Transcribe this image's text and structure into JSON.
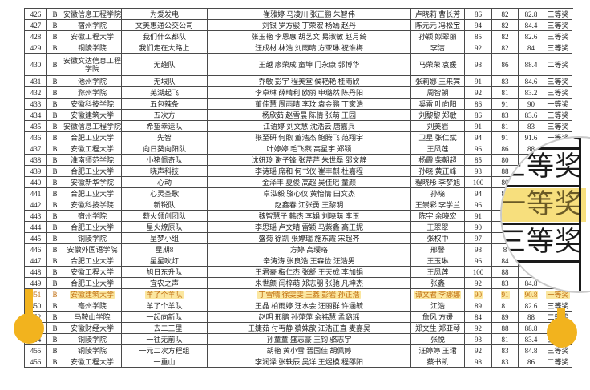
{
  "table": {
    "col_keys": [
      "no",
      "group",
      "school",
      "team",
      "members",
      "advisors",
      "score1",
      "score2",
      "avg",
      "award"
    ],
    "rows": [
      {
        "no": "426",
        "group": "B",
        "school": "安徽信息工程学院",
        "team": "为爱发电",
        "members": "崔雅婷 马凌川 张正鹏 朱智伟",
        "advisors": "卢晓莉 曹长芳",
        "score1": "86",
        "score2": "82",
        "avg": "82.8",
        "award": "三等奖"
      },
      {
        "no": "427",
        "group": "B",
        "school": "宿州学院",
        "team": "文美惠通公交公司",
        "members": "刘银 罗方骏 丁荣宏 杨嫣 赵丹",
        "advisors": "陈元元 冯松宝",
        "score1": "94",
        "score2": "82",
        "avg": "84.4",
        "award": "三等奖"
      },
      {
        "no": "428",
        "group": "B",
        "school": "安徽工程大学",
        "team": "我们什么都队",
        "members": "张玉艳 李恩惠 胡艺文 易淑敏 赵月绮",
        "advisors": "孙颖 姒翠丽",
        "score1": "85",
        "score2": "82",
        "avg": "82.6",
        "award": "三等奖"
      },
      {
        "no": "429",
        "group": "B",
        "school": "铜陵学院",
        "team": "我们走在大路上",
        "members": "汪成材 林浩 刘雨晴 方亚琳 祝淮梅",
        "advisors": "李洁",
        "score1": "92",
        "score2": "82",
        "avg": "84",
        "award": "三等奖"
      },
      {
        "no": "430",
        "group": "B",
        "school": "安徽文达信息工程学院",
        "team": "无趣队",
        "members": "王越 廖荣成 童坤 门永康 郭博华",
        "advisors": "马荣荣 袁媛",
        "score1": "98",
        "score2": "86",
        "avg": "88.4",
        "award": "二等奖",
        "tall": true
      },
      {
        "no": "431",
        "group": "B",
        "school": "池州学院",
        "team": "无垠队",
        "members": "乔敏 彭宇 程美堂 侯艳艳 桂雨欣",
        "advisors": "张莉娜 王来宾",
        "score1": "91",
        "score2": "83",
        "avg": "84.6",
        "award": "三等奖"
      },
      {
        "no": "432",
        "group": "B",
        "school": "滁州学院",
        "team": "芜湖起飞",
        "members": "李卓琳 薛晴利 欧丽 申璐然 陈丹阳",
        "advisors": "周智朝",
        "score1": "92",
        "score2": "81",
        "avg": "83.2",
        "award": "三等奖"
      },
      {
        "no": "433",
        "group": "B",
        "school": "安徽科技学院",
        "team": "五包辣条",
        "members": "董佳慧 周雨晴 李玟 袁金鹏 丁家浩",
        "advisors": "奚雷 叶向阳",
        "score1": "86",
        "score2": "91",
        "avg": "90",
        "award": "一等奖"
      },
      {
        "no": "434",
        "group": "B",
        "school": "安徽建筑大学",
        "team": "五次方",
        "members": "杨欣茹 赵雪晨 陈倩 张萌 王园",
        "advisors": "刘黎黎 郑敏",
        "score1": "86",
        "score2": "83",
        "avg": "83.6",
        "award": "三等奖"
      },
      {
        "no": "435",
        "group": "B",
        "school": "安徽信息工程学院",
        "team": "希望幸运队",
        "members": "江语婷 刘文慧 沈浩云 唐嘉兵",
        "advisors": "刘美岩",
        "score1": "91",
        "score2": "81",
        "avg": "83",
        "award": "三等奖"
      },
      {
        "no": "436",
        "group": "B",
        "school": "合肥工业大学",
        "team": "先智",
        "members": "张至研 何煦 董浩杰 鲍腾飞 范翔宇",
        "advisors": "卫星 张仁斌",
        "score1": "94",
        "score2": "91",
        "avg": "91.6",
        "award": "一等奖"
      },
      {
        "no": "437",
        "group": "B",
        "school": "安徽工程大学",
        "team": "向日葵向阳队",
        "members": "叶婷婷 毛飞燕 高星宇 郑颖",
        "advisors": "王凤莲",
        "score1": "96",
        "score2": "86",
        "avg": "88",
        "award": "二等奖"
      },
      {
        "no": "438",
        "group": "B",
        "school": "淮南师范学院",
        "team": "小猪佩奇队",
        "members": "沈妍玲 谢子锋 张芹芹 朱世磊 邵文静",
        "advisors": "杨霞 柴朝超",
        "score1": "85",
        "score2": "80",
        "avg": "81",
        "award": ""
      },
      {
        "no": "439",
        "group": "B",
        "school": "合肥工业大学",
        "team": "晓声科技",
        "members": "李诗瑶 席和 何书仪 崔丰麒 杜嘉程",
        "advisors": "孙晓 黄正峰",
        "score1": "93",
        "score2": "88",
        "avg": "",
        "award": ""
      },
      {
        "no": "440",
        "group": "B",
        "school": "安徽新华学院",
        "team": "心动",
        "members": "金泽丰 夏俊 高超 吴佳瑶 童颜",
        "advisors": "程晓彤 李梦旭",
        "score1": "100",
        "score2": "80",
        "avg": "",
        "award": ""
      },
      {
        "no": "441",
        "group": "B",
        "school": "合肥工业大学",
        "team": "心灵圣歌",
        "members": "卓泓毅 骆心仪 黄怡情 田文杰",
        "advisors": "孙晓",
        "score1": "94",
        "score2": "83",
        "avg": "",
        "award": ""
      },
      {
        "no": "442",
        "group": "B",
        "school": "安徽科技学院",
        "team": "新锐队",
        "members": "赵鑫春 江张勇 王黎明",
        "advisors": "王崇彩 李学兰",
        "score1": "96",
        "score2": "",
        "avg": "",
        "award": ""
      },
      {
        "no": "443",
        "group": "B",
        "school": "宿州学院",
        "team": "薪火领创团队",
        "members": "魏智慧子 韩杰 李娟 刘晓萌 李玉",
        "advisors": "陈宇 余晓宏",
        "score1": "91",
        "score2": "",
        "avg": "",
        "award": ""
      },
      {
        "no": "444",
        "group": "B",
        "school": "合肥工业大学",
        "team": "星火燎原队",
        "members": "李思瑶 卢文晴 雷颖 马紫鑫 高王妮",
        "advisors": "王翠翠",
        "score1": "90",
        "score2": "",
        "avg": "",
        "award": ""
      },
      {
        "no": "445",
        "group": "B",
        "school": "铜陵学院",
        "team": "星梦小组",
        "members": "盛菊 徐凯 张婷瑞 施东霞 宋超齐",
        "advisors": "张权中",
        "score1": "97",
        "score2": "",
        "avg": "",
        "award": ""
      },
      {
        "no": "446",
        "group": "B",
        "school": "安徽外国语学院",
        "team": "星期8",
        "members": "方婷 高璎珞",
        "advisors": "邢謦",
        "score1": "98",
        "score2": "8",
        "avg": "",
        "award": ""
      },
      {
        "no": "447",
        "group": "B",
        "school": "合肥工业大学",
        "team": "星星吹灯",
        "members": "辛涛涛 张良浩 王森俭 汪浩男",
        "advisors": "王玉琳",
        "score1": "96",
        "score2": "84",
        "avg": "",
        "award": ""
      },
      {
        "no": "448",
        "group": "B",
        "school": "安徽工程大学",
        "team": "旭日东升队",
        "members": "王君豪 梅仁杰 张舒 王天成 李加娟",
        "advisors": "王凤莲",
        "score1": "100",
        "score2": "88",
        "avg": "",
        "award": ""
      },
      {
        "no": "449",
        "group": "B",
        "school": "合肥工业大学",
        "team": "宜农之声",
        "members": "朱世颜 闫梓萌 郑志朋 张驰 凡坤杰",
        "advisors": "张鑫",
        "score1": "92",
        "score2": "83",
        "avg": "84.8",
        "award": ""
      },
      {
        "no": "451",
        "group": "B",
        "school": "安徽建筑大学",
        "team": "羊了个羊队",
        "members": "丁雪晴 徐雯雯 王鑫 彭岩 孙正浩",
        "advisors": "谭文君 李娜娜",
        "score1": "90",
        "score2": "91",
        "avg": "90.8",
        "award": "一等奖",
        "highlight": true
      },
      {
        "no": "450",
        "group": "B",
        "school": "亳州学院",
        "team": "羊了个羊队",
        "members": "王晶 柏雨婷 汪水会 汪丽群 许涵毓",
        "advisors": "江浩",
        "score1": "89",
        "score2": "81",
        "avg": "82.6",
        "award": "三等奖"
      },
      {
        "no": "452",
        "group": "B",
        "school": "马鞍山学院",
        "team": "一起向新队",
        "members": "赵明 邢鹏 孙萍萍 余祎慧 孟璐瑶",
        "advisors": "詹风 方媛",
        "score1": "84",
        "score2": "89",
        "avg": "88",
        "award": "二等奖"
      },
      {
        "no": "453",
        "group": "B",
        "school": "安徽财经大学",
        "team": "一去二三里",
        "members": "王婕茹 付丏静 蔡姝歆 江浩正直 麦嘉昊",
        "advisors": "郑文生 郑亚琴",
        "score1": "92",
        "score2": "88",
        "avg": "88.8",
        "award": "二等奖"
      },
      {
        "no": "454",
        "group": "B",
        "school": "铜陵学院",
        "team": "一往无前队",
        "members": "孙童童 盛志豪 王钧 骆志宇",
        "advisors": "张悦",
        "score1": "93",
        "score2": "81",
        "avg": "83.4",
        "award": "三等奖"
      },
      {
        "no": "455",
        "group": "B",
        "school": "铜陵学院",
        "team": "一元二次方程组",
        "members": "胡艳 黄小雪 晋国佳 胡佩婷",
        "advisors": "汪婷婷 王珺",
        "score1": "92",
        "score2": "83",
        "avg": "84.8",
        "award": "三等奖"
      },
      {
        "no": "456",
        "group": "B",
        "school": "安徽工程大学",
        "team": "一重山",
        "members": "李润泽 张轶辰 吴洋 王煜模 程邵阳",
        "advisors": "蔡书凯",
        "score1": "98",
        "score2": "83",
        "avg": "86",
        "award": "二等奖"
      }
    ]
  },
  "loupe": {
    "rows": [
      {
        "text": "三等奖"
      },
      {
        "text": "三等奖"
      },
      {
        "text": "一等奖",
        "highlighted": true
      },
      {
        "text": "三等奖"
      }
    ]
  },
  "colors": {
    "highlight_bg": "#fbe7a0",
    "highlight_text": "#c06e10",
    "handle": "#f2b31e",
    "loupe_highlight_bg": "#f7df7d"
  }
}
